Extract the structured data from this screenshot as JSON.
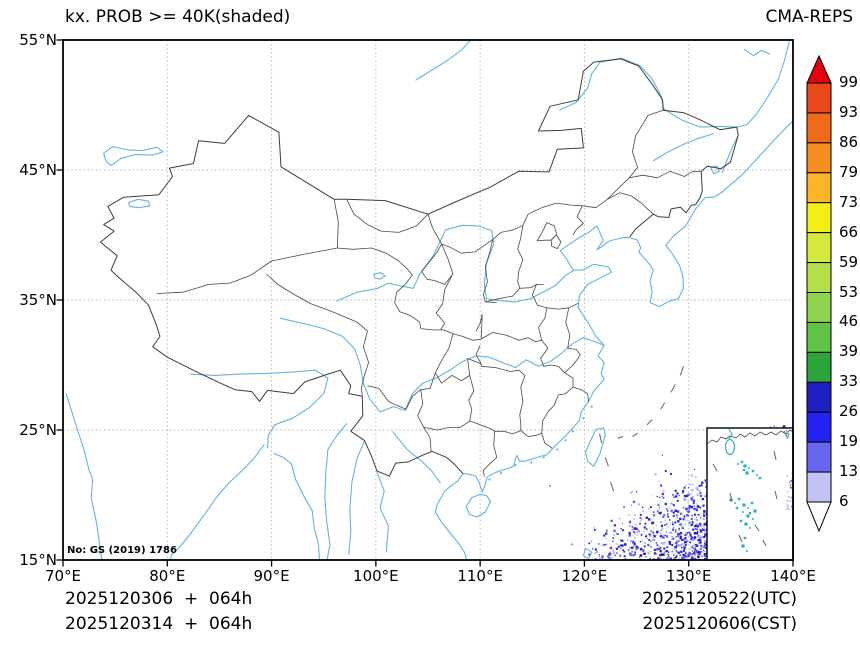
{
  "header": {
    "title_left": "kx. PROB >= 40K(shaded)",
    "title_right": "CMA-REPS"
  },
  "map": {
    "annotation": "No: GS (2019) 1786",
    "inset_name": "south-china-sea-inset"
  },
  "axes": {
    "x_ticks": [
      {
        "deg": 70,
        "label": "70°E"
      },
      {
        "deg": 80,
        "label": "80°E"
      },
      {
        "deg": 90,
        "label": "90°E"
      },
      {
        "deg": 100,
        "label": "100°E"
      },
      {
        "deg": 110,
        "label": "110°E"
      },
      {
        "deg": 120,
        "label": "120°E"
      },
      {
        "deg": 130,
        "label": "130°E"
      },
      {
        "deg": 140,
        "label": "140°E"
      }
    ],
    "y_ticks": [
      {
        "deg": 55,
        "label": "55°N"
      },
      {
        "deg": 45,
        "label": "45°N"
      },
      {
        "deg": 35,
        "label": "35°N"
      },
      {
        "deg": 25,
        "label": "25°N"
      },
      {
        "deg": 15,
        "label": "15°N"
      }
    ]
  },
  "colorbar": {
    "labels_top_to_bottom": [
      "99",
      "93",
      "86",
      "79",
      "73",
      "66",
      "59",
      "53",
      "46",
      "39",
      "33",
      "26",
      "19",
      "13",
      "6"
    ],
    "band_colors_top_to_bottom": [
      "#e9491b",
      "#ef6b1a",
      "#f58e1f",
      "#f9b42a",
      "#f3ef14",
      "#d5e93c",
      "#b3e04a",
      "#8ed44e",
      "#5fc348",
      "#2ea43c",
      "#2020c2",
      "#2424f0",
      "#6666f0",
      "#c2c2f5"
    ],
    "extend_above_color": "#e4000f",
    "extend_below_color": "#ffffff"
  },
  "footer": {
    "init_lines": [
      "2025120306  +  064h",
      "2025120314  +  064h"
    ],
    "valid_lines": [
      "2025120522(UTC)",
      "2025120606(CST)"
    ]
  },
  "colors": {
    "boundary": "#3e3e3e",
    "province": "#4a4a4a",
    "water": "#63b4e0",
    "island": "#2fb4c4",
    "island_green": "#3fae6a",
    "grid": "#b3b3b3",
    "ninedash": "#6f6f6f",
    "frame": "#000000",
    "speckle_palette": [
      "#1f1fd0",
      "#3333e2",
      "#6b6bee",
      "#a6a6f2",
      "#d2d2f8"
    ],
    "speckle_rare": [
      "#2fa44a",
      "#2fb0b8"
    ]
  },
  "chart_data": {
    "type": "map",
    "product": "ensemble probability of K index >= 40 K (shaded)",
    "model": "CMA-REPS",
    "lon_range_deg_e": [
      70,
      140
    ],
    "lat_range_deg_n": [
      15,
      55
    ],
    "probability_levels_percent": [
      6,
      13,
      19,
      26,
      33,
      39,
      46,
      53,
      59,
      66,
      73,
      79,
      86,
      93,
      99
    ],
    "shaded_region": "low-probability blue shading (≈6-33%) over far southeast corner of domain near 122-135E, 15-20N and inside South China Sea inset",
    "forecast_init": [
      "2025120306 + 064h",
      "2025120314 + 064h"
    ],
    "valid_time": [
      "2025120522(UTC)",
      "2025120606(CST)"
    ]
  }
}
